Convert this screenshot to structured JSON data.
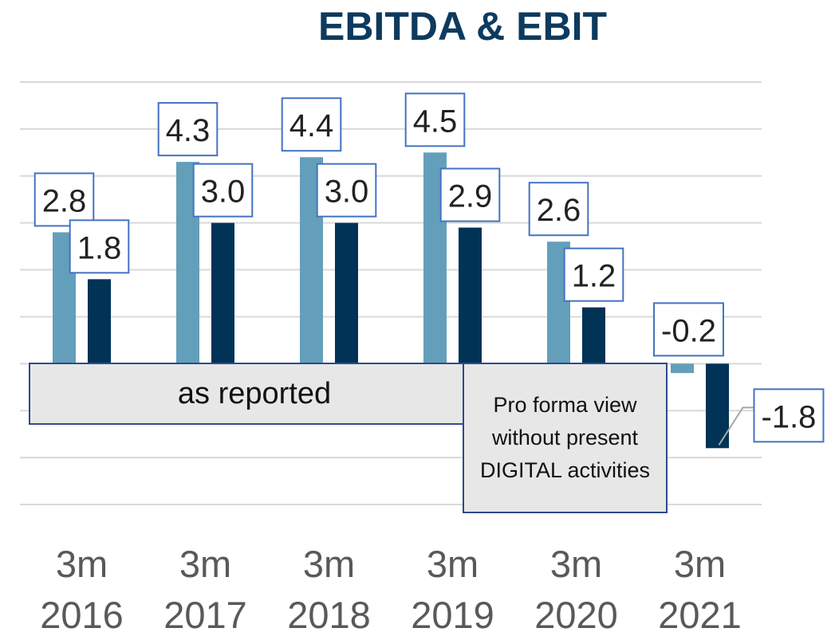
{
  "chart_data": {
    "type": "bar",
    "title": "EBITDA & EBIT",
    "categories": [
      "3m 2016",
      "3m 2017",
      "3m 2018",
      "3m 2019",
      "3m 2020",
      "3m 2021"
    ],
    "series": [
      {
        "color": "#639fba",
        "values": [
          2.8,
          4.3,
          4.4,
          4.5,
          2.6,
          -0.2
        ],
        "value_labels": [
          "2.8",
          "4.3",
          "4.4",
          "4.5",
          "2.6",
          "-0.2"
        ]
      },
      {
        "color": "#003356",
        "values": [
          1.8,
          3.0,
          3.0,
          2.9,
          1.2,
          -1.8
        ],
        "value_labels": [
          "1.8",
          "3.0",
          "3.0",
          "2.9",
          "1.2",
          "-1.8"
        ]
      }
    ],
    "ylim": [
      -3,
      6
    ],
    "yticks": [
      -3,
      -2,
      -1,
      0,
      1,
      2,
      3,
      4,
      5,
      6
    ],
    "grid": true,
    "annotations": [
      "as reported",
      "Pro forma view without present DIGITAL activities"
    ]
  }
}
